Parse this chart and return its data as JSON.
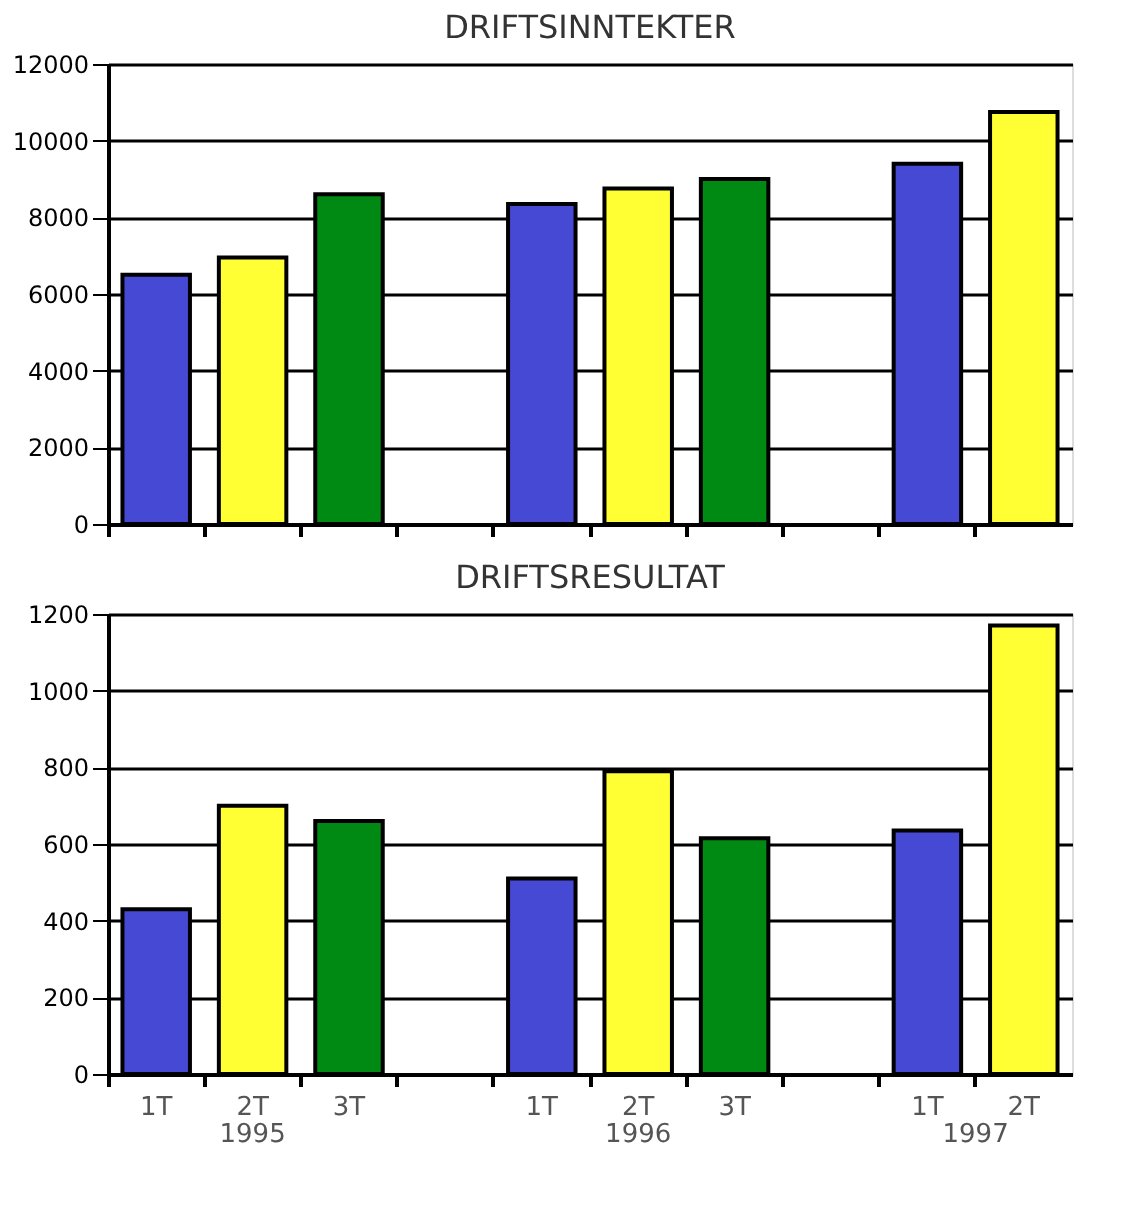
{
  "chart_data": [
    {
      "type": "bar",
      "title": "DRIFTSINNTEKTER",
      "categories": [
        null,
        null,
        null,
        null,
        null,
        null,
        null,
        null,
        null,
        null
      ],
      "values": [
        6500,
        6950,
        8600,
        null,
        8350,
        8750,
        9000,
        null,
        9400,
        10750
      ],
      "colors": [
        "#4649d4",
        "#ffff33",
        "#008a14",
        null,
        "#4649d4",
        "#ffff33",
        "#008a14",
        null,
        "#4649d4",
        "#ffff33"
      ],
      "ylim": [
        0,
        12000
      ],
      "yticks": [
        0,
        2000,
        4000,
        6000,
        8000,
        10000,
        12000
      ],
      "grid": "y",
      "tick_labels": "y"
    },
    {
      "type": "bar",
      "title": "DRIFTSRESULTAT",
      "categories": [
        "1T",
        "2T",
        "3T",
        null,
        "1T",
        "2T",
        "3T",
        null,
        "1T",
        "2T"
      ],
      "values": [
        430,
        700,
        660,
        null,
        510,
        790,
        615,
        null,
        635,
        1170
      ],
      "colors": [
        "#4649d4",
        "#ffff33",
        "#008a14",
        null,
        "#4649d4",
        "#ffff33",
        "#008a14",
        null,
        "#4649d4",
        "#ffff33"
      ],
      "ylim": [
        0,
        1200
      ],
      "yticks": [
        0,
        200,
        400,
        600,
        800,
        1000,
        1200
      ],
      "grid": "y",
      "annotations": [
        "1995",
        "1996",
        "1997"
      ]
    }
  ]
}
